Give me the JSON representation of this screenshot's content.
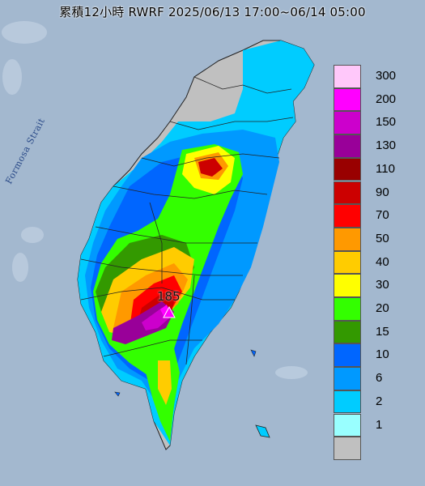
{
  "title": "累積12小時 RWRF 2025/06/13 17:00~06/14 05:00",
  "sea_label": "Formosa Strait",
  "peak_value": "185",
  "legend": [
    {
      "label": "300",
      "color": "#ffc8fa"
    },
    {
      "label": "200",
      "color": "#ff00ff"
    },
    {
      "label": "150",
      "color": "#cc00cc"
    },
    {
      "label": "130",
      "color": "#990099"
    },
    {
      "label": "110",
      "color": "#990000"
    },
    {
      "label": "90",
      "color": "#cc0000"
    },
    {
      "label": "70",
      "color": "#ff0000"
    },
    {
      "label": "50",
      "color": "#ff9900"
    },
    {
      "label": "40",
      "color": "#ffcc00"
    },
    {
      "label": "30",
      "color": "#ffff00"
    },
    {
      "label": "20",
      "color": "#33ff00"
    },
    {
      "label": "15",
      "color": "#339900"
    },
    {
      "label": "10",
      "color": "#0066ff"
    },
    {
      "label": "6",
      "color": "#0099ff"
    },
    {
      "label": "2",
      "color": "#00ccff"
    },
    {
      "label": "1",
      "color": "#99ffff"
    },
    {
      "label": "",
      "color": "#c0c0c0"
    }
  ]
}
